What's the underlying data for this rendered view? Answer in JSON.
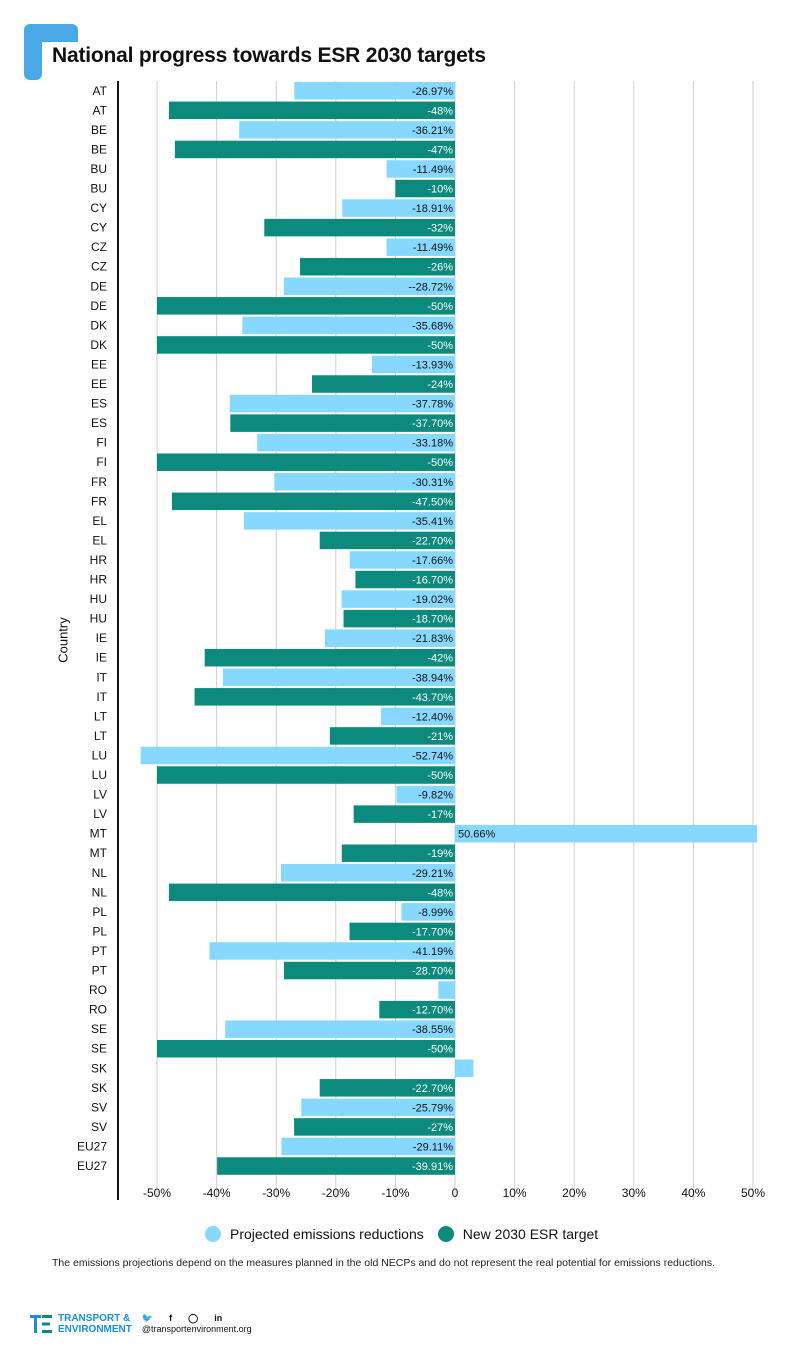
{
  "title": "National progress towards ESR 2030 targets",
  "colors": {
    "projected": "#86d8ff",
    "target": "#0d8a7e",
    "accent": "#4aa8e6"
  },
  "legend": {
    "projected": "Projected emissions reductions",
    "target": "New 2030 ESR target"
  },
  "footnote": "The emissions projections depend on the measures planned in the old NECPs and do not represent the real potential for emissions reductions.",
  "footer": {
    "brand_line1": "TRANSPORT &",
    "brand_line2": "ENVIRONMENT",
    "website": "@transportenvironment.org",
    "social_icons": [
      "twitter-icon",
      "facebook-icon",
      "instagram-icon",
      "linkedin-icon"
    ]
  },
  "chart_data": {
    "type": "bar",
    "orientation": "horizontal",
    "ylabel": "Country",
    "xlim": [
      -55,
      50
    ],
    "xticks": [
      -50,
      -40,
      -30,
      -20,
      -10,
      0,
      10,
      20,
      30,
      40,
      50
    ],
    "xtick_labels": [
      "-50%",
      "-40%",
      "-30%",
      "-20%",
      "-10%",
      "0",
      "10%",
      "20%",
      "30%",
      "40%",
      "50%"
    ],
    "grid": true,
    "legend_position": "bottom",
    "rows": [
      {
        "country": "AT",
        "series": "projected",
        "value": -26.97,
        "label": "-26.97%"
      },
      {
        "country": "AT",
        "series": "target",
        "value": -48,
        "label": "-48%"
      },
      {
        "country": "BE",
        "series": "projected",
        "value": -36.21,
        "label": "-36.21%"
      },
      {
        "country": "BE",
        "series": "target",
        "value": -47,
        "label": "-47%"
      },
      {
        "country": "BU",
        "series": "projected",
        "value": -11.49,
        "label": "-11.49%"
      },
      {
        "country": "BU",
        "series": "target",
        "value": -10,
        "label": "-10%"
      },
      {
        "country": "CY",
        "series": "projected",
        "value": -18.91,
        "label": "-18.91%"
      },
      {
        "country": "CY",
        "series": "target",
        "value": -32,
        "label": "-32%"
      },
      {
        "country": "CZ",
        "series": "projected",
        "value": -11.49,
        "label": "-11.49%"
      },
      {
        "country": "CZ",
        "series": "target",
        "value": -26,
        "label": "-26%"
      },
      {
        "country": "DE",
        "series": "projected",
        "value": -28.72,
        "label": "--28.72%"
      },
      {
        "country": "DE",
        "series": "target",
        "value": -50,
        "label": "-50%"
      },
      {
        "country": "DK",
        "series": "projected",
        "value": -35.68,
        "label": "-35.68%"
      },
      {
        "country": "DK",
        "series": "target",
        "value": -50,
        "label": "-50%"
      },
      {
        "country": "EE",
        "series": "projected",
        "value": -13.93,
        "label": "-13.93%"
      },
      {
        "country": "EE",
        "series": "target",
        "value": -24,
        "label": "-24%"
      },
      {
        "country": "ES",
        "series": "projected",
        "value": -37.78,
        "label": "-37.78%"
      },
      {
        "country": "ES",
        "series": "target",
        "value": -37.7,
        "label": "-37.70%"
      },
      {
        "country": "FI",
        "series": "projected",
        "value": -33.18,
        "label": "-33.18%"
      },
      {
        "country": "FI",
        "series": "target",
        "value": -50,
        "label": "-50%"
      },
      {
        "country": "FR",
        "series": "projected",
        "value": -30.31,
        "label": "-30.31%"
      },
      {
        "country": "FR",
        "series": "target",
        "value": -47.5,
        "label": "-47.50%"
      },
      {
        "country": "EL",
        "series": "projected",
        "value": -35.41,
        "label": "-35.41%"
      },
      {
        "country": "EL",
        "series": "target",
        "value": -22.7,
        "label": "-22.70%"
      },
      {
        "country": "HR",
        "series": "projected",
        "value": -17.66,
        "label": "-17.66%"
      },
      {
        "country": "HR",
        "series": "target",
        "value": -16.7,
        "label": "-16.70%"
      },
      {
        "country": "HU",
        "series": "projected",
        "value": -19.02,
        "label": "-19.02%"
      },
      {
        "country": "HU",
        "series": "target",
        "value": -18.7,
        "label": "-18.70%"
      },
      {
        "country": "IE",
        "series": "projected",
        "value": -21.83,
        "label": "-21.83%"
      },
      {
        "country": "IE",
        "series": "target",
        "value": -42,
        "label": "-42%"
      },
      {
        "country": "IT",
        "series": "projected",
        "value": -38.94,
        "label": "-38.94%"
      },
      {
        "country": "IT",
        "series": "target",
        "value": -43.7,
        "label": "-43.70%"
      },
      {
        "country": "LT",
        "series": "projected",
        "value": -12.4,
        "label": "-12.40%"
      },
      {
        "country": "LT",
        "series": "target",
        "value": -21,
        "label": "-21%"
      },
      {
        "country": "LU",
        "series": "projected",
        "value": -52.74,
        "label": "-52.74%"
      },
      {
        "country": "LU",
        "series": "target",
        "value": -50,
        "label": "-50%"
      },
      {
        "country": "LV",
        "series": "projected",
        "value": -9.82,
        "label": "-9.82%"
      },
      {
        "country": "LV",
        "series": "target",
        "value": -17,
        "label": "-17%"
      },
      {
        "country": "MT",
        "series": "projected",
        "value": 50.66,
        "label": "50.66%"
      },
      {
        "country": "MT",
        "series": "target",
        "value": -19,
        "label": "-19%"
      },
      {
        "country": "NL",
        "series": "projected",
        "value": -29.21,
        "label": "-29.21%"
      },
      {
        "country": "NL",
        "series": "target",
        "value": -48,
        "label": "-48%"
      },
      {
        "country": "PL",
        "series": "projected",
        "value": -8.99,
        "label": "-8.99%"
      },
      {
        "country": "PL",
        "series": "target",
        "value": -17.7,
        "label": "-17.70%"
      },
      {
        "country": "PT",
        "series": "projected",
        "value": -41.19,
        "label": "-41.19%"
      },
      {
        "country": "PT",
        "series": "target",
        "value": -28.7,
        "label": "-28.70%"
      },
      {
        "country": "RO",
        "series": "projected",
        "value": -2.8,
        "label": ""
      },
      {
        "country": "RO",
        "series": "target",
        "value": -12.7,
        "label": "-12.70%"
      },
      {
        "country": "SE",
        "series": "projected",
        "value": -38.55,
        "label": "-38.55%"
      },
      {
        "country": "SE",
        "series": "target",
        "value": -50,
        "label": "-50%"
      },
      {
        "country": "SK",
        "series": "projected",
        "value": 3.1,
        "label": ""
      },
      {
        "country": "SK",
        "series": "target",
        "value": -22.7,
        "label": "-22.70%"
      },
      {
        "country": "SV",
        "series": "projected",
        "value": -25.79,
        "label": "-25.79%"
      },
      {
        "country": "SV",
        "series": "target",
        "value": -27,
        "label": "-27%"
      },
      {
        "country": "EU27",
        "series": "projected",
        "value": -29.11,
        "label": "-29.11%"
      },
      {
        "country": "EU27",
        "series": "target",
        "value": -39.91,
        "label": "-39.91%"
      }
    ]
  }
}
